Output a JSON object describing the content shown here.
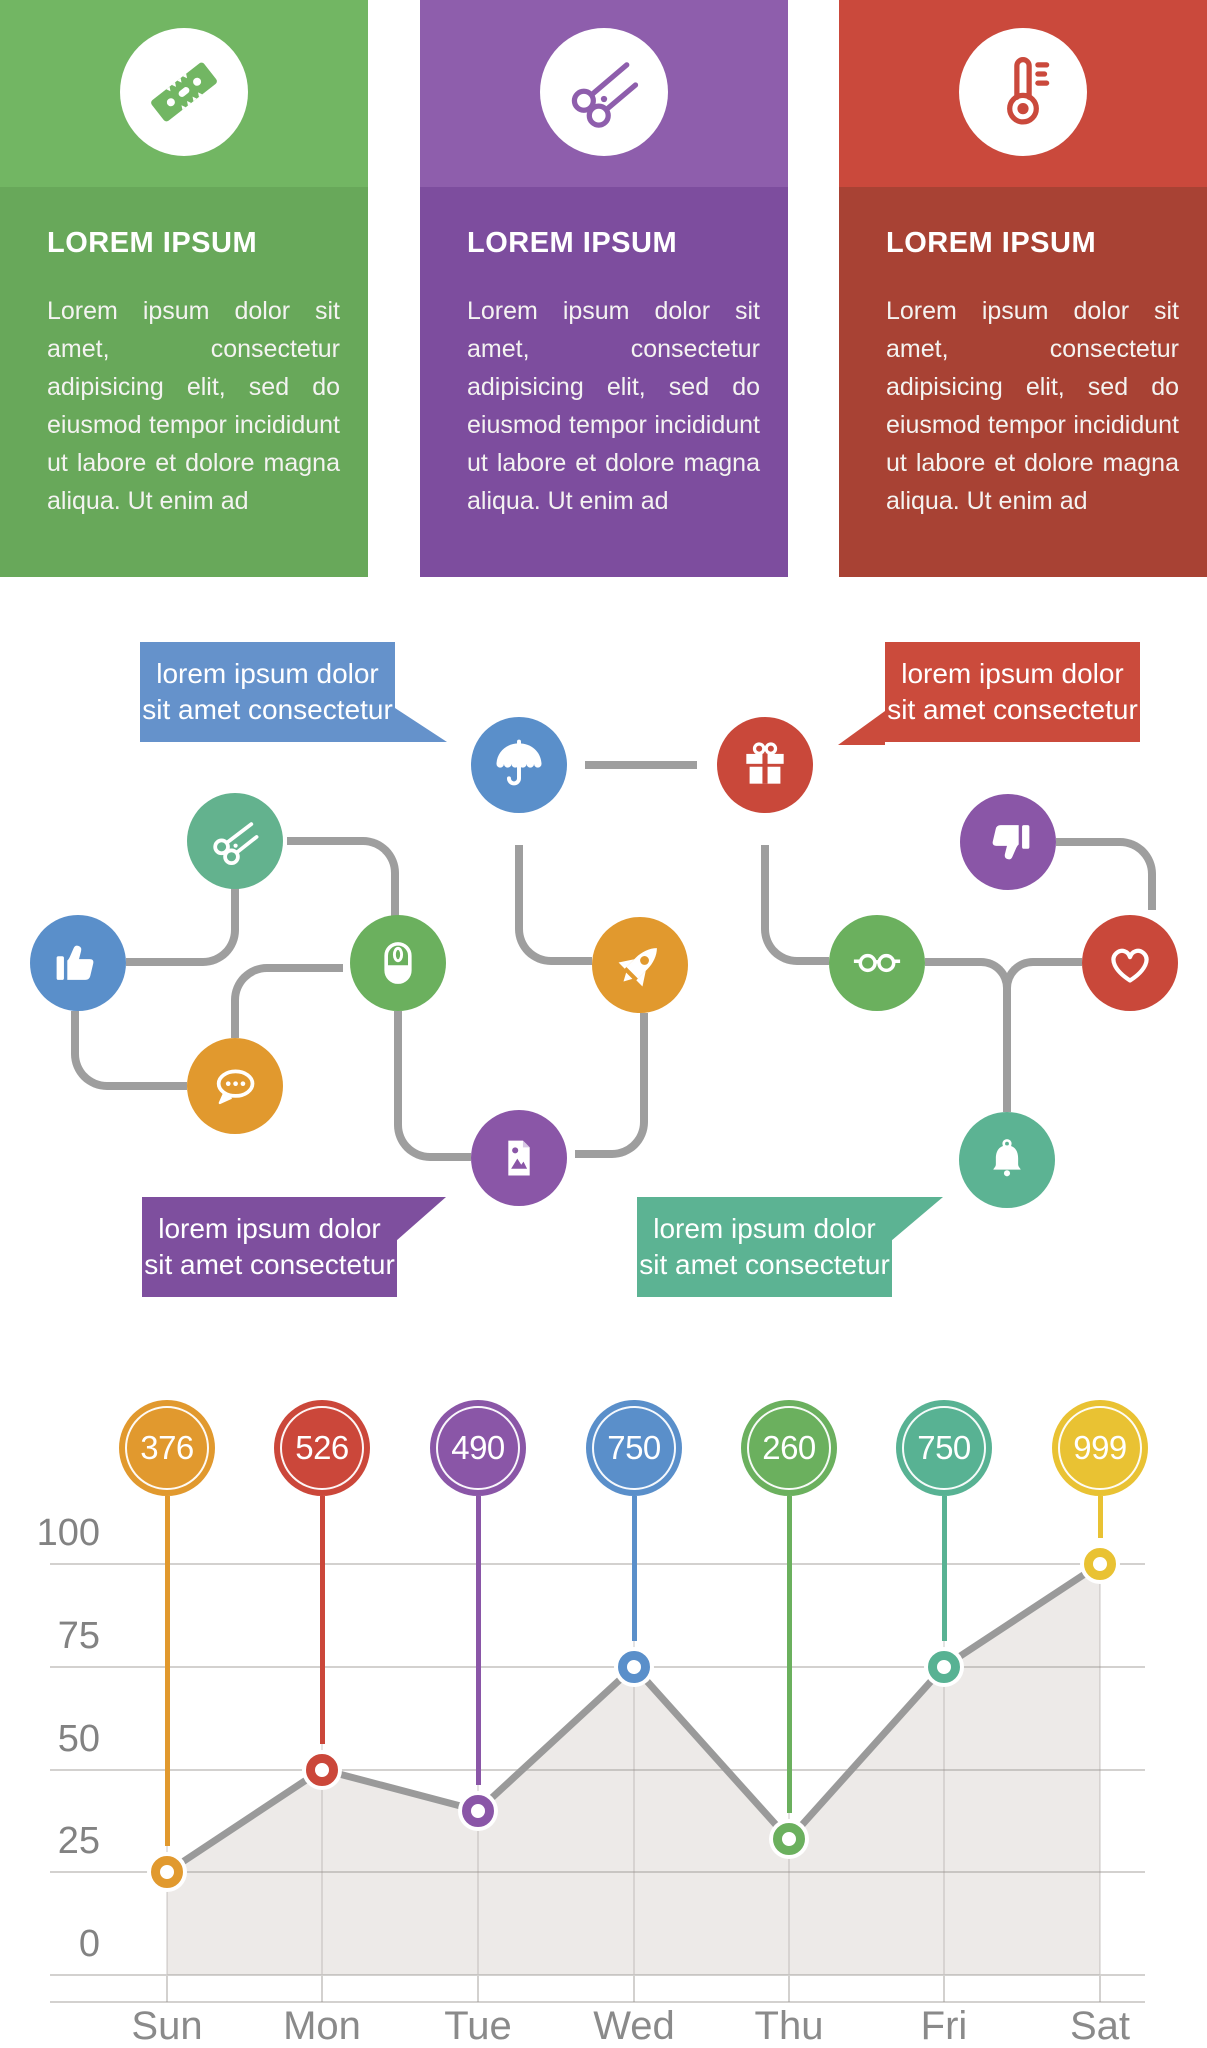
{
  "cards": [
    {
      "icon": "razor-blade-icon",
      "title": "LOREM IPSUM",
      "body": "Lorem ipsum dolor sit amet, consectetur adipisicing elit, sed do eiusmod tempor incididunt ut labore et dolore magna aliqua. Ut enim ad",
      "header_color": "#72b663",
      "body_color": "#68a85a"
    },
    {
      "icon": "scissors-icon",
      "title": "LOREM IPSUM",
      "body": "Lorem ipsum dolor sit amet, consectetur adipisicing elit, sed do eiusmod tempor incididunt ut labore et dolore magna aliqua. Ut enim ad",
      "header_color": "#8e5eac",
      "body_color": "#7d4d9e"
    },
    {
      "icon": "thermometer-icon",
      "title": "LOREM IPSUM",
      "body": "Lorem ipsum dolor sit amet, consectetur adipisicing elit, sed do eiusmod tempor incididunt ut labore et dolore magna aliqua. Ut enim ad",
      "header_color": "#ca493c",
      "body_color": "#a84234"
    }
  ],
  "diagram": {
    "connector_color": "#9e9e9e",
    "speech_bubbles": [
      {
        "position": "top-left",
        "line1": "lorem ipsum dolor",
        "line2": "sit amet consectetur",
        "color": "#6592cb",
        "points_to": "umbrella"
      },
      {
        "position": "top-right",
        "line1": "lorem ipsum dolor",
        "line2": "sit amet consectetur",
        "color": "#cb4b3c",
        "points_to": "gift"
      },
      {
        "position": "bottom-left",
        "line1": "lorem ipsum dolor",
        "line2": "sit amet consectetur",
        "color": "#7e4f9e",
        "points_to": "image"
      },
      {
        "position": "bottom-right",
        "line1": "lorem ipsum dolor",
        "line2": "sit amet consectetur",
        "color": "#5cb393",
        "points_to": "bell"
      }
    ],
    "nodes": [
      {
        "icon": "umbrella-icon",
        "color": "#5a8fca"
      },
      {
        "icon": "gift-icon",
        "color": "#c9483a"
      },
      {
        "icon": "scissors-icon",
        "color": "#63b28e"
      },
      {
        "icon": "thumbs-down-icon",
        "color": "#8a56a7"
      },
      {
        "icon": "thumbs-up-icon",
        "color": "#5a8fca"
      },
      {
        "icon": "mouse-icon",
        "color": "#6bb05e"
      },
      {
        "icon": "rocket-icon",
        "color": "#e1992e"
      },
      {
        "icon": "glasses-icon",
        "color": "#6bb05e"
      },
      {
        "icon": "heart-icon",
        "color": "#c9483a"
      },
      {
        "icon": "chat-icon",
        "color": "#e1992e"
      },
      {
        "icon": "image-icon",
        "color": "#8a56a7"
      },
      {
        "icon": "bell-icon",
        "color": "#5cb393"
      }
    ]
  },
  "chart_data": {
    "type": "area",
    "title": "",
    "xlabel": "",
    "ylabel": "",
    "categories": [
      "Sun",
      "Mon",
      "Tue",
      "Wed",
      "Thu",
      "Fri",
      "Sat"
    ],
    "values": [
      25,
      50,
      40,
      75,
      33,
      75,
      100
    ],
    "bubble_labels": [
      "376",
      "526",
      "490",
      "750",
      "260",
      "750",
      "999"
    ],
    "series_colors": [
      "#e1992e",
      "#cb473a",
      "#8a56a7",
      "#5a8fca",
      "#6bb05e",
      "#58b293",
      "#e9c233"
    ],
    "yticks": [
      100,
      75,
      50,
      25,
      0
    ],
    "ylim": [
      0,
      100
    ],
    "grid": true,
    "legend": false,
    "line_color": "#9a9a9a",
    "area_color": "#edeae8",
    "axis_text_color": "#828282"
  }
}
